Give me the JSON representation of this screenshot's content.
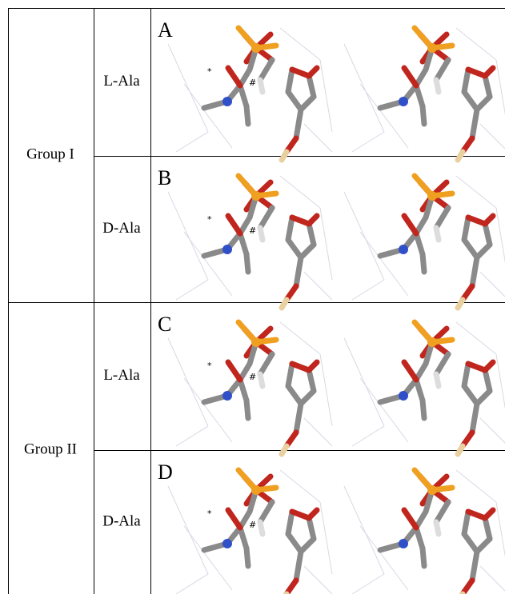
{
  "table": {
    "groups": [
      {
        "label": "Group I",
        "rows": [
          {
            "ligand": "L-Ala",
            "panel": "A",
            "marks": [
              "*",
              "#"
            ]
          },
          {
            "ligand": "D-Ala",
            "panel": "B",
            "marks": [
              "*",
              "#"
            ]
          }
        ]
      },
      {
        "label": "Group II",
        "rows": [
          {
            "ligand": "L-Ala",
            "panel": "C",
            "marks": [
              "*",
              "#"
            ]
          },
          {
            "ligand": "D-Ala",
            "panel": "D",
            "marks": [
              "*",
              "#"
            ]
          }
        ]
      }
    ]
  }
}
